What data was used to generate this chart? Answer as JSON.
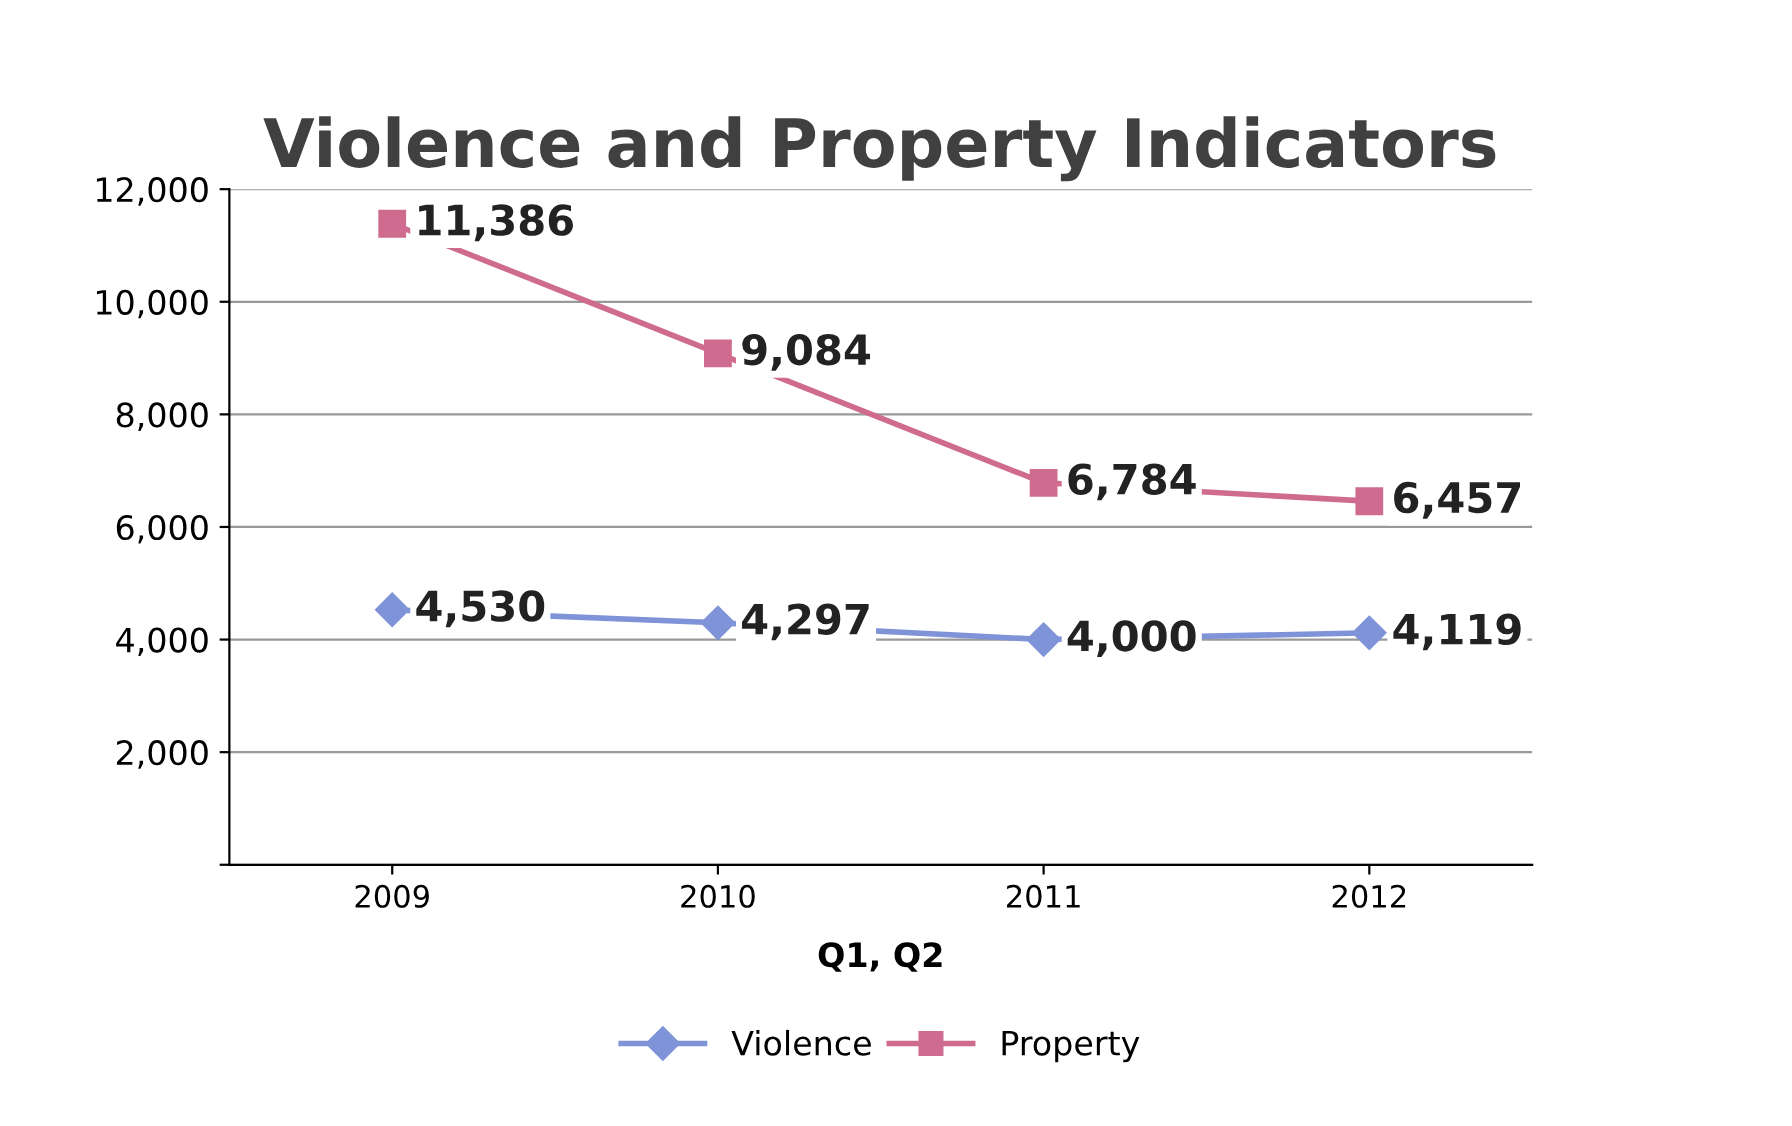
{
  "chart_data": {
    "type": "line",
    "title": "Violence and Property Indicators",
    "xlabel": "Q1, Q2",
    "categories": [
      "2009",
      "2010",
      "2011",
      "2012"
    ],
    "series": [
      {
        "name": "Violence",
        "color": "#7f93d8",
        "marker": "diamond",
        "values": [
          4530,
          4297,
          4000,
          4119
        ],
        "value_labels": [
          "4,530",
          "4,297",
          "4,000",
          "4,119"
        ]
      },
      {
        "name": "Property",
        "color": "#cf6b8f",
        "marker": "square",
        "values": [
          11386,
          9084,
          6784,
          6457
        ],
        "value_labels": [
          "11,386",
          "9,084",
          "6,784",
          "6,457"
        ]
      }
    ],
    "ylim": [
      0,
      12000
    ],
    "yticks": [
      {
        "value": 0,
        "label": null
      },
      {
        "value": 2000,
        "label": "2,000"
      },
      {
        "value": 4000,
        "label": "4,000"
      },
      {
        "value": 6000,
        "label": "6,000"
      },
      {
        "value": 8000,
        "label": "8,000"
      },
      {
        "value": 10000,
        "label": "10,000"
      },
      {
        "value": 12000,
        "label": "12,000"
      }
    ],
    "grid": "y",
    "legend": "bottom",
    "line_style": "solid"
  }
}
